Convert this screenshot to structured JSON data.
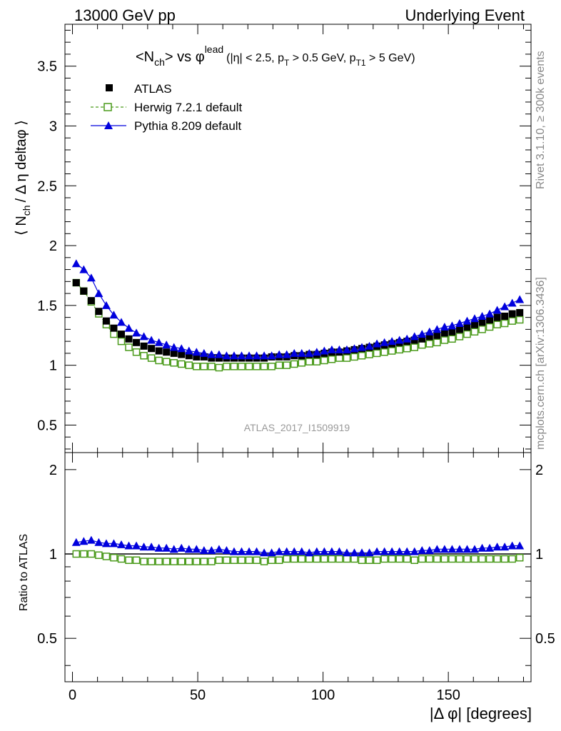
{
  "header": {
    "left": "13000 GeV pp",
    "right": "Underlying Event"
  },
  "side_labels": {
    "rivet": "Rivet 3.1.10, ≥ 300k events",
    "mcplots": "mcplots.cern.ch [arXiv:1306.3436]"
  },
  "analysis_id": "ATLAS_2017_I1509919",
  "colors": {
    "atlas": "#000000",
    "herwig": "#4a9a1a",
    "pythia": "#0000dd",
    "side_text": "#888888",
    "analysis_text": "#999999"
  },
  "chart_data": [
    {
      "type": "scatter",
      "title_parts": {
        "lhs_n": "<N",
        "lhs_sub": "ch",
        "lhs_close": "> vs φ",
        "lhs_sup": "lead",
        "cond_open": "(|η| < 2.5, p",
        "cond_sub1": "T",
        "cond_mid": " > 0.5 GeV, p",
        "cond_sub2": "T1",
        "cond_close": " > 5 GeV)"
      },
      "ylabel_parts": {
        "open": "⟨ N",
        "sub": "ch",
        "rest": "/ Δ η deltaφ ⟩"
      },
      "xlim": [
        -3,
        183
      ],
      "ylim": [
        0.27,
        3.85
      ],
      "yticks": [
        "0.5",
        "1",
        "1.5",
        "2",
        "2.5",
        "3",
        "3.5"
      ],
      "legend_position": "top-left",
      "x": [
        1.5,
        4.5,
        7.5,
        10.5,
        13.5,
        16.5,
        19.5,
        22.5,
        25.5,
        28.5,
        31.5,
        34.5,
        37.5,
        40.5,
        43.5,
        46.5,
        49.5,
        52.5,
        55.5,
        58.5,
        61.5,
        64.5,
        67.5,
        70.5,
        73.5,
        76.5,
        79.5,
        82.5,
        85.5,
        88.5,
        91.5,
        94.5,
        97.5,
        100.5,
        103.5,
        106.5,
        109.5,
        112.5,
        115.5,
        118.5,
        121.5,
        124.5,
        127.5,
        130.5,
        133.5,
        136.5,
        139.5,
        142.5,
        145.5,
        148.5,
        151.5,
        154.5,
        157.5,
        160.5,
        163.5,
        166.5,
        169.5,
        172.5,
        175.5,
        178.5
      ],
      "series": [
        {
          "name": "ATLAS",
          "marker": "filled-square",
          "values": [
            1.69,
            1.62,
            1.54,
            1.45,
            1.37,
            1.31,
            1.26,
            1.22,
            1.19,
            1.16,
            1.14,
            1.12,
            1.11,
            1.1,
            1.09,
            1.08,
            1.07,
            1.07,
            1.06,
            1.06,
            1.06,
            1.06,
            1.06,
            1.06,
            1.06,
            1.06,
            1.07,
            1.07,
            1.07,
            1.08,
            1.08,
            1.09,
            1.09,
            1.1,
            1.11,
            1.11,
            1.12,
            1.13,
            1.14,
            1.15,
            1.16,
            1.17,
            1.18,
            1.19,
            1.2,
            1.21,
            1.22,
            1.24,
            1.25,
            1.27,
            1.28,
            1.3,
            1.32,
            1.34,
            1.36,
            1.38,
            1.4,
            1.41,
            1.43,
            1.44
          ]
        },
        {
          "name": "Herwig 7.2.1 default",
          "marker": "open-square",
          "values": [
            1.69,
            1.62,
            1.53,
            1.43,
            1.34,
            1.26,
            1.2,
            1.15,
            1.11,
            1.08,
            1.06,
            1.04,
            1.03,
            1.02,
            1.01,
            1.0,
            0.99,
            0.99,
            0.99,
            0.98,
            0.99,
            0.99,
            0.99,
            0.99,
            0.99,
            0.99,
            0.99,
            1.0,
            1.0,
            1.01,
            1.02,
            1.03,
            1.03,
            1.04,
            1.05,
            1.06,
            1.06,
            1.07,
            1.08,
            1.09,
            1.1,
            1.11,
            1.12,
            1.13,
            1.14,
            1.15,
            1.17,
            1.18,
            1.19,
            1.21,
            1.22,
            1.24,
            1.26,
            1.28,
            1.3,
            1.32,
            1.34,
            1.35,
            1.37,
            1.38
          ]
        },
        {
          "name": "Pythia 8.209 default",
          "marker": "filled-triangle",
          "values": [
            1.85,
            1.8,
            1.73,
            1.6,
            1.5,
            1.42,
            1.36,
            1.31,
            1.27,
            1.24,
            1.21,
            1.19,
            1.17,
            1.15,
            1.14,
            1.12,
            1.11,
            1.1,
            1.09,
            1.09,
            1.08,
            1.08,
            1.08,
            1.08,
            1.08,
            1.08,
            1.08,
            1.09,
            1.09,
            1.1,
            1.1,
            1.1,
            1.11,
            1.12,
            1.13,
            1.13,
            1.13,
            1.14,
            1.15,
            1.16,
            1.18,
            1.19,
            1.2,
            1.21,
            1.22,
            1.24,
            1.26,
            1.28,
            1.3,
            1.32,
            1.33,
            1.35,
            1.37,
            1.39,
            1.41,
            1.43,
            1.46,
            1.49,
            1.52,
            1.55
          ]
        }
      ]
    },
    {
      "type": "scatter",
      "ylabel": "Ratio to ATLAS",
      "xlabel_parts": {
        "text": "|Δ φ| [degrees]"
      },
      "xlim": [
        -3,
        183
      ],
      "ylim": [
        0.35,
        2.3
      ],
      "yticks": [
        "0.5",
        "1",
        "2"
      ],
      "xticks": [
        "0",
        "50",
        "100",
        "150"
      ],
      "reference_line": 1,
      "x": [
        1.5,
        4.5,
        7.5,
        10.5,
        13.5,
        16.5,
        19.5,
        22.5,
        25.5,
        28.5,
        31.5,
        34.5,
        37.5,
        40.5,
        43.5,
        46.5,
        49.5,
        52.5,
        55.5,
        58.5,
        61.5,
        64.5,
        67.5,
        70.5,
        73.5,
        76.5,
        79.5,
        82.5,
        85.5,
        88.5,
        91.5,
        94.5,
        97.5,
        100.5,
        103.5,
        106.5,
        109.5,
        112.5,
        115.5,
        118.5,
        121.5,
        124.5,
        127.5,
        130.5,
        133.5,
        136.5,
        139.5,
        142.5,
        145.5,
        148.5,
        151.5,
        154.5,
        157.5,
        160.5,
        163.5,
        166.5,
        169.5,
        172.5,
        175.5,
        178.5
      ],
      "series": [
        {
          "name": "Herwig 7.2.1 default",
          "marker": "open-square",
          "values": [
            1.0,
            1.0,
            1.0,
            0.99,
            0.98,
            0.97,
            0.96,
            0.95,
            0.95,
            0.94,
            0.94,
            0.94,
            0.94,
            0.94,
            0.94,
            0.94,
            0.94,
            0.94,
            0.94,
            0.95,
            0.95,
            0.95,
            0.95,
            0.95,
            0.95,
            0.94,
            0.95,
            0.95,
            0.96,
            0.96,
            0.96,
            0.96,
            0.96,
            0.96,
            0.96,
            0.96,
            0.96,
            0.96,
            0.95,
            0.95,
            0.95,
            0.96,
            0.96,
            0.96,
            0.96,
            0.95,
            0.96,
            0.96,
            0.96,
            0.96,
            0.96,
            0.96,
            0.96,
            0.96,
            0.96,
            0.96,
            0.96,
            0.96,
            0.96,
            0.97
          ]
        },
        {
          "name": "Pythia 8.209 default",
          "marker": "filled-triangle",
          "values": [
            1.1,
            1.11,
            1.12,
            1.1,
            1.09,
            1.09,
            1.08,
            1.07,
            1.07,
            1.06,
            1.06,
            1.05,
            1.05,
            1.04,
            1.05,
            1.04,
            1.04,
            1.03,
            1.03,
            1.04,
            1.03,
            1.02,
            1.02,
            1.02,
            1.02,
            1.01,
            1.01,
            1.02,
            1.02,
            1.02,
            1.02,
            1.01,
            1.02,
            1.02,
            1.02,
            1.02,
            1.01,
            1.01,
            1.01,
            1.01,
            1.02,
            1.02,
            1.02,
            1.02,
            1.02,
            1.02,
            1.03,
            1.03,
            1.04,
            1.04,
            1.04,
            1.04,
            1.04,
            1.04,
            1.05,
            1.05,
            1.06,
            1.06,
            1.07,
            1.07
          ]
        }
      ]
    }
  ]
}
